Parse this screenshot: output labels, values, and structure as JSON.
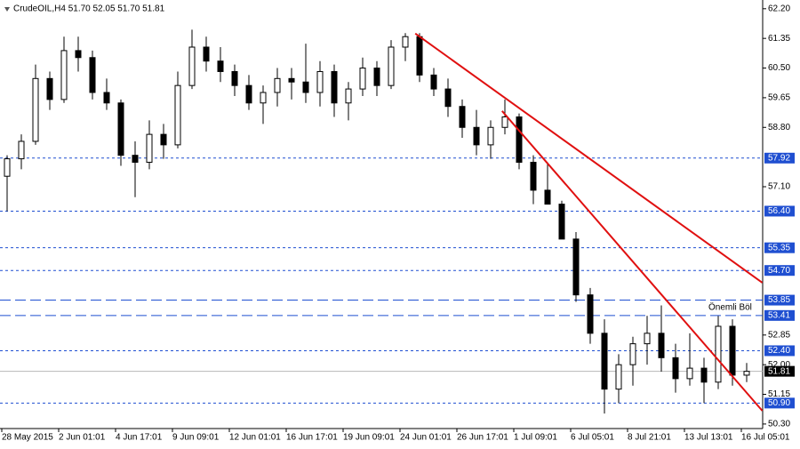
{
  "chart_data": {
    "type": "candlestick",
    "title": "CrudeOIL,H4  51.70 52.05 51.70 51.81",
    "categories": [
      "28 May 2015",
      null,
      null,
      null,
      "2 Jun 01:01",
      null,
      null,
      null,
      "4 Jun 17:01",
      null,
      null,
      null,
      "9 Jun 09:01",
      null,
      null,
      null,
      "12 Jun 01:01",
      null,
      null,
      null,
      "16 Jun 17:01",
      null,
      null,
      null,
      "19 Jun 09:01",
      null,
      null,
      null,
      "24 Jun 01:01",
      null,
      null,
      null,
      "26 Jun 17:01",
      null,
      null,
      null,
      "1 Jul 09:01",
      null,
      null,
      null,
      "6 Jul 05:01",
      null,
      null,
      null,
      "8 Jul 21:01",
      null,
      null,
      null,
      "13 Jul 13:01",
      null,
      null,
      null,
      "16 Jul 05:01"
    ],
    "open": [
      57.4,
      57.9,
      58.4,
      60.2,
      59.6,
      61.0,
      60.8,
      59.8,
      59.5,
      58.0,
      57.8,
      58.6,
      58.3,
      60.0,
      61.1,
      60.7,
      60.4,
      60.0,
      59.5,
      59.8,
      60.2,
      60.1,
      59.8,
      60.4,
      59.5,
      59.9,
      60.5,
      60.0,
      61.1,
      61.4,
      60.3,
      59.9,
      59.4,
      58.8,
      58.3,
      58.8,
      59.1,
      57.8,
      57.0,
      56.6,
      55.6,
      54.0,
      52.9,
      51.3,
      52.0,
      52.6,
      52.9,
      52.2,
      51.6,
      51.9,
      51.5,
      53.1,
      51.7
    ],
    "high": [
      58.0,
      58.6,
      60.6,
      60.4,
      61.4,
      61.4,
      61.0,
      60.2,
      59.6,
      58.4,
      59.0,
      58.9,
      60.4,
      61.6,
      61.4,
      61.1,
      60.6,
      60.3,
      60.0,
      60.5,
      60.5,
      61.2,
      60.7,
      60.6,
      60.1,
      60.8,
      60.7,
      61.3,
      61.5,
      61.5,
      60.5,
      60.2,
      59.6,
      59.3,
      59.0,
      59.6,
      59.2,
      58.0,
      57.8,
      56.7,
      55.8,
      54.2,
      53.3,
      52.3,
      52.8,
      53.4,
      53.7,
      52.6,
      52.9,
      52.2,
      53.4,
      53.3,
      52.05
    ],
    "low": [
      56.4,
      57.6,
      58.3,
      59.3,
      59.5,
      60.4,
      59.6,
      59.3,
      57.7,
      56.8,
      57.6,
      57.9,
      58.2,
      59.9,
      60.4,
      60.1,
      59.7,
      59.3,
      58.9,
      59.4,
      59.6,
      59.5,
      59.4,
      59.1,
      59.0,
      59.7,
      59.7,
      59.9,
      60.7,
      60.1,
      59.7,
      59.1,
      58.5,
      58.0,
      57.9,
      58.6,
      57.6,
      56.6,
      56.6,
      55.6,
      53.8,
      52.6,
      50.6,
      50.9,
      51.4,
      52.0,
      51.8,
      51.2,
      51.4,
      50.9,
      51.3,
      51.4,
      51.5
    ],
    "close": [
      57.9,
      58.4,
      60.2,
      59.6,
      61.0,
      60.8,
      59.8,
      59.5,
      58.0,
      57.8,
      58.6,
      58.3,
      60.0,
      61.1,
      60.7,
      60.4,
      60.0,
      59.5,
      59.8,
      60.2,
      60.1,
      59.8,
      60.4,
      59.5,
      59.9,
      60.5,
      60.0,
      61.1,
      61.4,
      60.3,
      59.9,
      59.4,
      58.8,
      58.3,
      58.8,
      59.1,
      57.8,
      57.0,
      56.6,
      55.6,
      54.0,
      52.9,
      51.3,
      52.0,
      52.6,
      52.9,
      52.2,
      51.6,
      51.9,
      51.5,
      53.1,
      51.7,
      51.81
    ],
    "ylim": [
      50.17,
      62.45
    ],
    "yticks": [
      {
        "value": 62.2,
        "label": "62.20"
      },
      {
        "value": 61.35,
        "label": "61.35"
      },
      {
        "value": 60.5,
        "label": "60.50"
      },
      {
        "value": 59.65,
        "label": "59.65"
      },
      {
        "value": 58.8,
        "label": "58.80"
      },
      {
        "value": 57.1,
        "label": "57.10"
      },
      {
        "value": 52.85,
        "label": "52.85"
      },
      {
        "value": 52.0,
        "label": "52.00"
      },
      {
        "value": 51.15,
        "label": "51.15"
      },
      {
        "value": 50.3,
        "label": "50.30"
      }
    ],
    "levels": [
      {
        "value": 57.92,
        "label": "57.92"
      },
      {
        "value": 56.4,
        "label": "56.40"
      },
      {
        "value": 55.35,
        "label": "55.35"
      },
      {
        "value": 54.7,
        "label": "54.70"
      },
      {
        "value": 53.85,
        "label": "53.85"
      },
      {
        "value": 53.41,
        "label": "53.41"
      },
      {
        "value": 52.4,
        "label": "52.40"
      },
      {
        "value": 50.9,
        "label": "50.90"
      }
    ],
    "level_color": "#1f4fd1",
    "current_price": 51.81,
    "trendlines": [
      {
        "x": [
          28.7,
          53.1
        ],
        "y": [
          61.49,
          54.35
        ]
      },
      {
        "x": [
          34.8,
          53.1
        ],
        "y": [
          59.27,
          50.68
        ]
      }
    ],
    "trendline_color": "#e01010",
    "annotation": "Önemli Böl"
  }
}
